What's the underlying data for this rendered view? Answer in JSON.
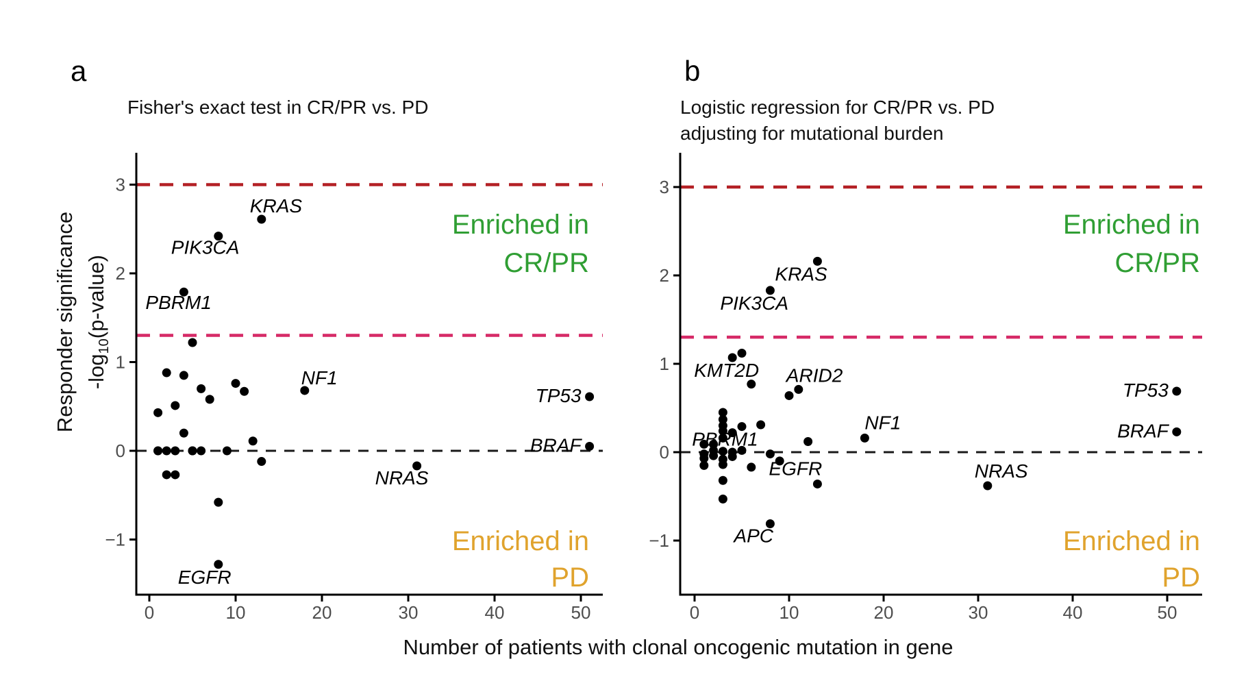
{
  "figure": {
    "xlabel": "Number of patients with clonal oncogenic mutation in gene",
    "ylabel_line1": "Responder significance",
    "ylabel_line2_pre": "-log",
    "ylabel_line2_sub": "10",
    "ylabel_line2_post": "(p-value)"
  },
  "colors": {
    "background": "#ffffff",
    "point": "#000000",
    "axis": "#000000",
    "tick_label": "#4d4d4d",
    "title": "#111111",
    "sig_line_high": "#b42025",
    "sig_line_low": "#d62a67",
    "zero_line": "#1a1a1a",
    "enriched_crpr": "#2f9e33",
    "enriched_pd": "#e0a32d"
  },
  "chart_data": [
    {
      "panel": "a",
      "type": "scatter",
      "title_line1": "Fisher's exact test in CR/PR vs. PD",
      "title_line2": "",
      "xlabel": "Number of patients with clonal oncogenic mutation in gene",
      "ylabel": "Responder significance -log10(p-value)",
      "xlim": [
        0,
        53
      ],
      "ylim": [
        -1.62,
        3.37
      ],
      "xticks": [
        0,
        10,
        20,
        30,
        40,
        50
      ],
      "yticks": [
        3,
        2,
        1,
        0,
        -1
      ],
      "grid": false,
      "hlines": [
        {
          "y": 3,
          "color_key": "sig_line_high",
          "style": "dashed"
        },
        {
          "y": 1.301,
          "color_key": "sig_line_low",
          "style": "dashed"
        },
        {
          "y": 0,
          "color_key": "zero_line",
          "style": "dashed"
        }
      ],
      "annotations": [
        {
          "line1": "Enriched in",
          "line2": "CR/PR",
          "corner": "upper-right",
          "color_key": "enriched_crpr"
        },
        {
          "line1": "Enriched in",
          "line2": "PD",
          "corner": "lower-right",
          "color_key": "enriched_pd"
        }
      ],
      "labeled_points": [
        {
          "gene": "KRAS",
          "x": 13,
          "y": 2.61
        },
        {
          "gene": "PIK3CA",
          "x": 8,
          "y": 2.42
        },
        {
          "gene": "PBRM1",
          "x": 4,
          "y": 1.79
        },
        {
          "gene": "NF1",
          "x": 18,
          "y": 0.68
        },
        {
          "gene": "TP53",
          "x": 51,
          "y": 0.61
        },
        {
          "gene": "BRAF",
          "x": 51,
          "y": 0.05
        },
        {
          "gene": "NRAS",
          "x": 31,
          "y": -0.17
        },
        {
          "gene": "EGFR",
          "x": 8,
          "y": -1.28
        }
      ],
      "unlabeled_points": [
        [
          5,
          1.22
        ],
        [
          2,
          0.88
        ],
        [
          4,
          0.85
        ],
        [
          10,
          0.76
        ],
        [
          6,
          0.7
        ],
        [
          11,
          0.67
        ],
        [
          7,
          0.58
        ],
        [
          3,
          0.51
        ],
        [
          1,
          0.43
        ],
        [
          4,
          0.2
        ],
        [
          12,
          0.11
        ],
        [
          1,
          0
        ],
        [
          1,
          0
        ],
        [
          2,
          0
        ],
        [
          3,
          0
        ],
        [
          5,
          0
        ],
        [
          5,
          0
        ],
        [
          6,
          0
        ],
        [
          9,
          0
        ],
        [
          13,
          -0.12
        ],
        [
          2,
          -0.27
        ],
        [
          3,
          -0.27
        ],
        [
          8,
          -0.58
        ]
      ]
    },
    {
      "panel": "b",
      "type": "scatter",
      "title_line1": "Logistic regression for CR/PR vs. PD",
      "title_line2": "adjusting for mutational burden",
      "xlabel": "Number of patients with clonal oncogenic mutation in gene",
      "ylabel": "Responder significance -log10(p-value)",
      "xlim": [
        0,
        53
      ],
      "ylim": [
        -1.62,
        3.37
      ],
      "xticks": [
        0,
        10,
        20,
        30,
        40,
        50
      ],
      "yticks": [
        3,
        2,
        1,
        0,
        -1
      ],
      "grid": false,
      "hlines": [
        {
          "y": 3,
          "color_key": "sig_line_high",
          "style": "dashed"
        },
        {
          "y": 1.301,
          "color_key": "sig_line_low",
          "style": "dashed"
        },
        {
          "y": 0,
          "color_key": "zero_line",
          "style": "dashed"
        }
      ],
      "annotations": [
        {
          "line1": "Enriched in",
          "line2": "CR/PR",
          "corner": "upper-right",
          "color_key": "enriched_crpr"
        },
        {
          "line1": "Enriched in",
          "line2": "PD",
          "corner": "lower-right",
          "color_key": "enriched_pd"
        }
      ],
      "labeled_points": [
        {
          "gene": "KRAS",
          "x": 13,
          "y": 2.16
        },
        {
          "gene": "PIK3CA",
          "x": 8,
          "y": 1.83
        },
        {
          "gene": "KMT2D",
          "x": 4,
          "y": 1.07
        },
        {
          "gene": "ARID2",
          "x": 11,
          "y": 0.71
        },
        {
          "gene": "TP53",
          "x": 51,
          "y": 0.69
        },
        {
          "gene": "BRAF",
          "x": 51,
          "y": 0.23
        },
        {
          "gene": "PBRM1",
          "x": 4,
          "y": 0.22
        },
        {
          "gene": "NF1",
          "x": 18,
          "y": 0.16
        },
        {
          "gene": "EGFR",
          "x": 8,
          "y": -0.02
        },
        {
          "gene": "NRAS",
          "x": 31,
          "y": -0.38
        },
        {
          "gene": "APC",
          "x": 8,
          "y": -0.81
        }
      ],
      "unlabeled_points": [
        [
          5,
          1.12
        ],
        [
          6,
          0.77
        ],
        [
          10,
          0.64
        ],
        [
          3,
          0.45
        ],
        [
          3,
          0.37
        ],
        [
          3,
          0.3
        ],
        [
          3,
          0.24
        ],
        [
          3,
          0.16
        ],
        [
          3,
          0.01
        ],
        [
          3,
          -0.08
        ],
        [
          3,
          -0.14
        ],
        [
          3,
          -0.32
        ],
        [
          3,
          -0.53
        ],
        [
          2,
          0.09
        ],
        [
          2,
          0.02
        ],
        [
          2,
          -0.04
        ],
        [
          1,
          0.09
        ],
        [
          1,
          -0.02
        ],
        [
          1,
          -0.07
        ],
        [
          1,
          -0.15
        ],
        [
          4,
          0.0
        ],
        [
          4,
          -0.05
        ],
        [
          5,
          0.29
        ],
        [
          5,
          0.02
        ],
        [
          7,
          0.31
        ],
        [
          6,
          -0.17
        ],
        [
          9,
          -0.1
        ],
        [
          12,
          0.12
        ],
        [
          13,
          -0.36
        ]
      ]
    }
  ]
}
